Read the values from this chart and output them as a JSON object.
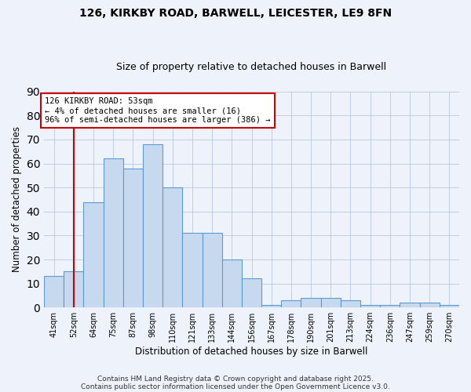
{
  "title_line1": "126, KIRKBY ROAD, BARWELL, LEICESTER, LE9 8FN",
  "title_line2": "Size of property relative to detached houses in Barwell",
  "xlabel": "Distribution of detached houses by size in Barwell",
  "ylabel": "Number of detached properties",
  "bar_labels": [
    "41sqm",
    "52sqm",
    "64sqm",
    "75sqm",
    "87sqm",
    "98sqm",
    "110sqm",
    "121sqm",
    "133sqm",
    "144sqm",
    "156sqm",
    "167sqm",
    "178sqm",
    "190sqm",
    "201sqm",
    "213sqm",
    "224sqm",
    "236sqm",
    "247sqm",
    "259sqm",
    "270sqm"
  ],
  "bar_values": [
    13,
    15,
    44,
    62,
    58,
    68,
    50,
    31,
    31,
    20,
    12,
    1,
    3,
    4,
    4,
    3,
    1,
    1,
    2,
    2,
    1
  ],
  "bar_color": "#c7d9ef",
  "bar_edge_color": "#5b9bd5",
  "background_color": "#eef2fa",
  "grid_color": "#b8c8e0",
  "vline_x": 1,
  "vline_color": "#cc0000",
  "annotation_text": "126 KIRKBY ROAD: 53sqm\n← 4% of detached houses are smaller (16)\n96% of semi-detached houses are larger (386) →",
  "annotation_box_color": "#ffffff",
  "annotation_border_color": "#cc0000",
  "ylim": [
    0,
    90
  ],
  "yticks": [
    0,
    10,
    20,
    30,
    40,
    50,
    60,
    70,
    80,
    90
  ],
  "footer_line1": "Contains HM Land Registry data © Crown copyright and database right 2025.",
  "footer_line2": "Contains public sector information licensed under the Open Government Licence v3.0."
}
